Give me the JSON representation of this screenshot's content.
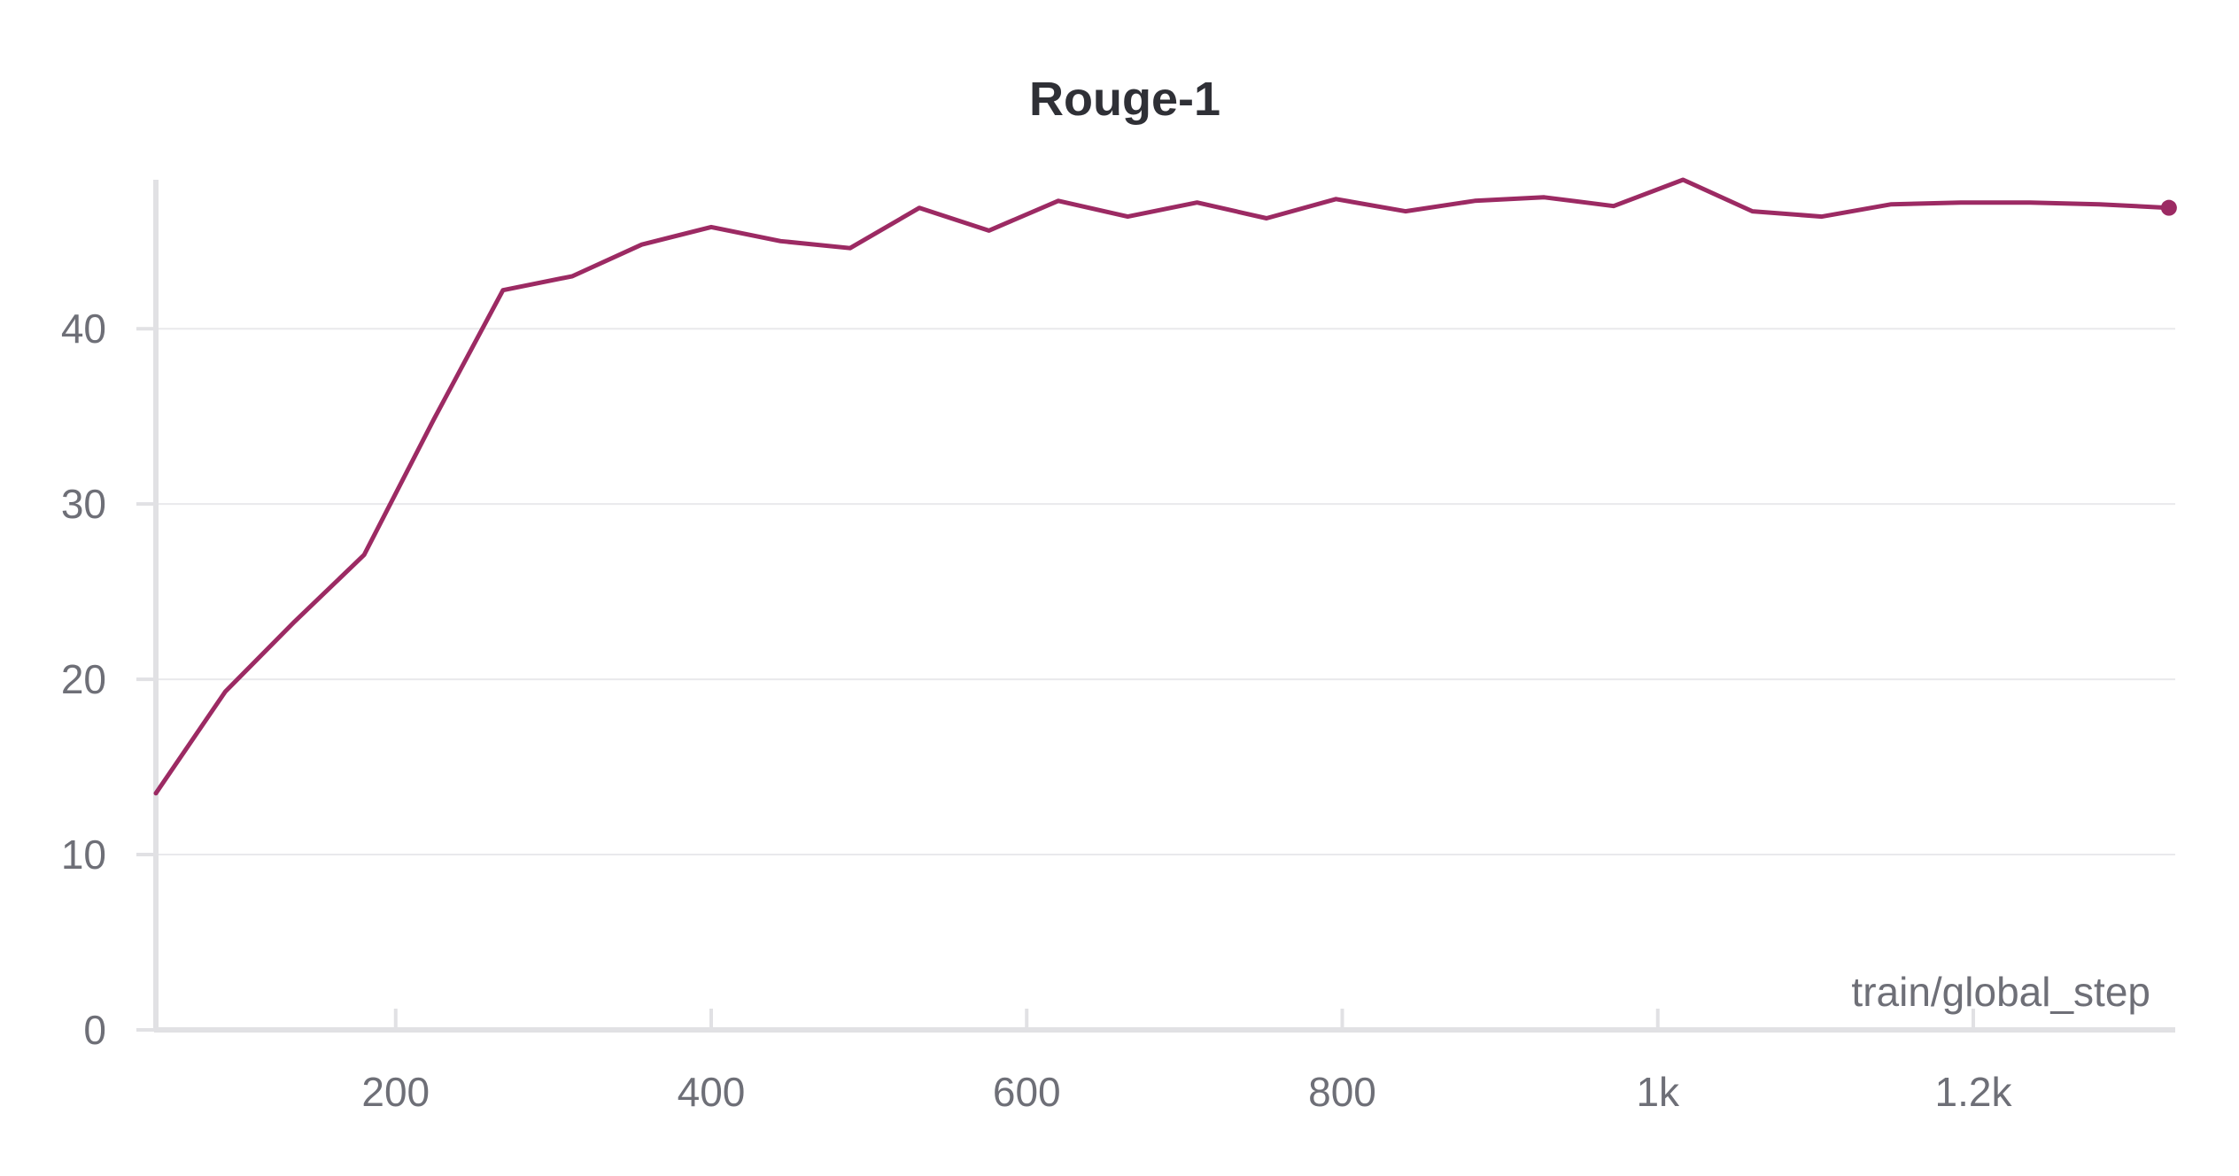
{
  "chart_data": {
    "type": "line",
    "title": "Rouge-1",
    "xlabel": "train/global_step",
    "ylabel": "",
    "xlim": [
      48,
      1328
    ],
    "ylim": [
      0,
      48.5
    ],
    "grid": true,
    "x_ticks": [
      {
        "value": 200,
        "label": "200"
      },
      {
        "value": 400,
        "label": "400"
      },
      {
        "value": 600,
        "label": "600"
      },
      {
        "value": 800,
        "label": "800"
      },
      {
        "value": 1000,
        "label": "1k"
      },
      {
        "value": 1200,
        "label": "1.2k"
      }
    ],
    "y_ticks": [
      {
        "value": 0,
        "label": "0"
      },
      {
        "value": 10,
        "label": "10"
      },
      {
        "value": 20,
        "label": "20"
      },
      {
        "value": 30,
        "label": "30"
      },
      {
        "value": 40,
        "label": "40"
      }
    ],
    "series": [
      {
        "color": "#9c2a63",
        "x": [
          48,
          92,
          136,
          180,
          224,
          268,
          312,
          356,
          400,
          444,
          488,
          532,
          576,
          620,
          664,
          708,
          752,
          796,
          840,
          884,
          928,
          972,
          1016,
          1060,
          1104,
          1148,
          1192,
          1236,
          1280,
          1324
        ],
        "y": [
          13.5,
          19.3,
          23.3,
          27.1,
          34.8,
          42.2,
          43.0,
          44.8,
          45.8,
          45.0,
          44.6,
          46.9,
          45.6,
          47.3,
          46.4,
          47.2,
          46.3,
          47.4,
          46.7,
          47.3,
          47.5,
          47.0,
          48.5,
          46.7,
          46.4,
          47.1,
          47.2,
          47.2,
          47.1,
          46.9
        ]
      }
    ]
  }
}
